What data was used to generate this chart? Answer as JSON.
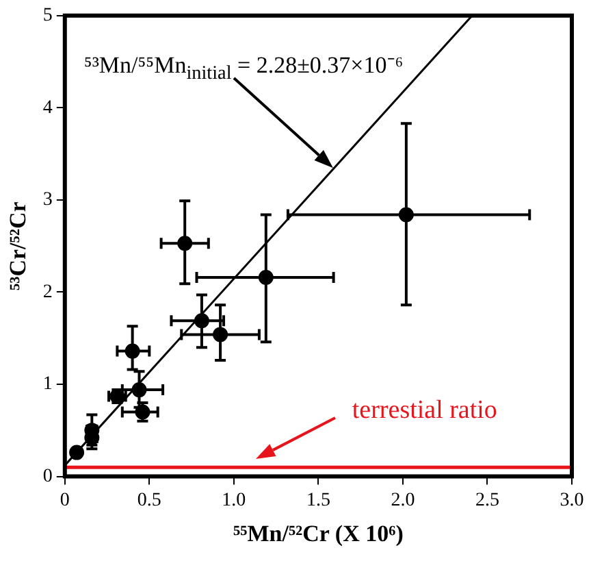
{
  "chart_data": {
    "type": "scatter",
    "xlabel": "⁵⁵Mn/⁵²Cr (X 10⁶)",
    "ylabel": "⁵³Cr/⁵²Cr",
    "xlim": [
      0,
      3
    ],
    "ylim": [
      0,
      5
    ],
    "xticks": [
      0,
      0.5,
      {
        "value": 1,
        "label": "1.0"
      },
      1.5,
      {
        "value": 2,
        "label": "2.0"
      },
      2.5,
      {
        "value": 3,
        "label": "3.0"
      }
    ],
    "yticks": [
      0,
      1,
      2,
      3,
      4,
      5
    ],
    "grid": false,
    "legend": false,
    "series": [
      {
        "type": "scatter",
        "marker": "circle",
        "color": "#000000",
        "x": [
          0.07,
          0.16,
          0.16,
          0.31,
          0.44,
          0.46,
          0.4,
          0.81,
          0.92,
          1.19,
          0.71,
          2.02
        ],
        "values": [
          0.26,
          0.5,
          0.42,
          0.87,
          0.94,
          0.7,
          1.36,
          1.69,
          1.54,
          2.16,
          2.53,
          2.84
        ],
        "errors": [
          null,
          [
            0.34,
            0.67
          ],
          [
            0.3,
            0.55
          ],
          [
            0.8,
            0.94
          ],
          [
            0.75,
            1.14
          ],
          [
            0.6,
            0.8
          ],
          [
            1.16,
            1.63
          ],
          [
            1.4,
            1.97
          ],
          [
            1.26,
            1.86
          ],
          [
            1.46,
            2.84
          ],
          [
            2.09,
            2.99
          ],
          [
            1.86,
            3.83
          ]
        ],
        "xerrors": [
          null,
          [
            0.13,
            0.19
          ],
          [
            0.13,
            0.19
          ],
          [
            0.26,
            0.36
          ],
          [
            0.34,
            0.58
          ],
          [
            0.34,
            0.55
          ],
          [
            0.31,
            0.5
          ],
          [
            0.63,
            0.94
          ],
          [
            0.69,
            1.15
          ],
          [
            0.78,
            1.59
          ],
          [
            0.57,
            0.85
          ],
          [
            1.32,
            2.75
          ]
        ]
      },
      {
        "type": "line",
        "color": "#000000",
        "x": [
          0,
          2.41
        ],
        "values": [
          0.12,
          5
        ]
      }
    ],
    "ref_lines": [
      {
        "axis": "y",
        "value": 0.1,
        "label": "terrestial ratio",
        "color": "#e8141b"
      }
    ],
    "annotations": [
      "⁵³Mn/⁵⁵Mn$_{initial}$ = 2.28±0.37×10⁻⁶"
    ]
  }
}
